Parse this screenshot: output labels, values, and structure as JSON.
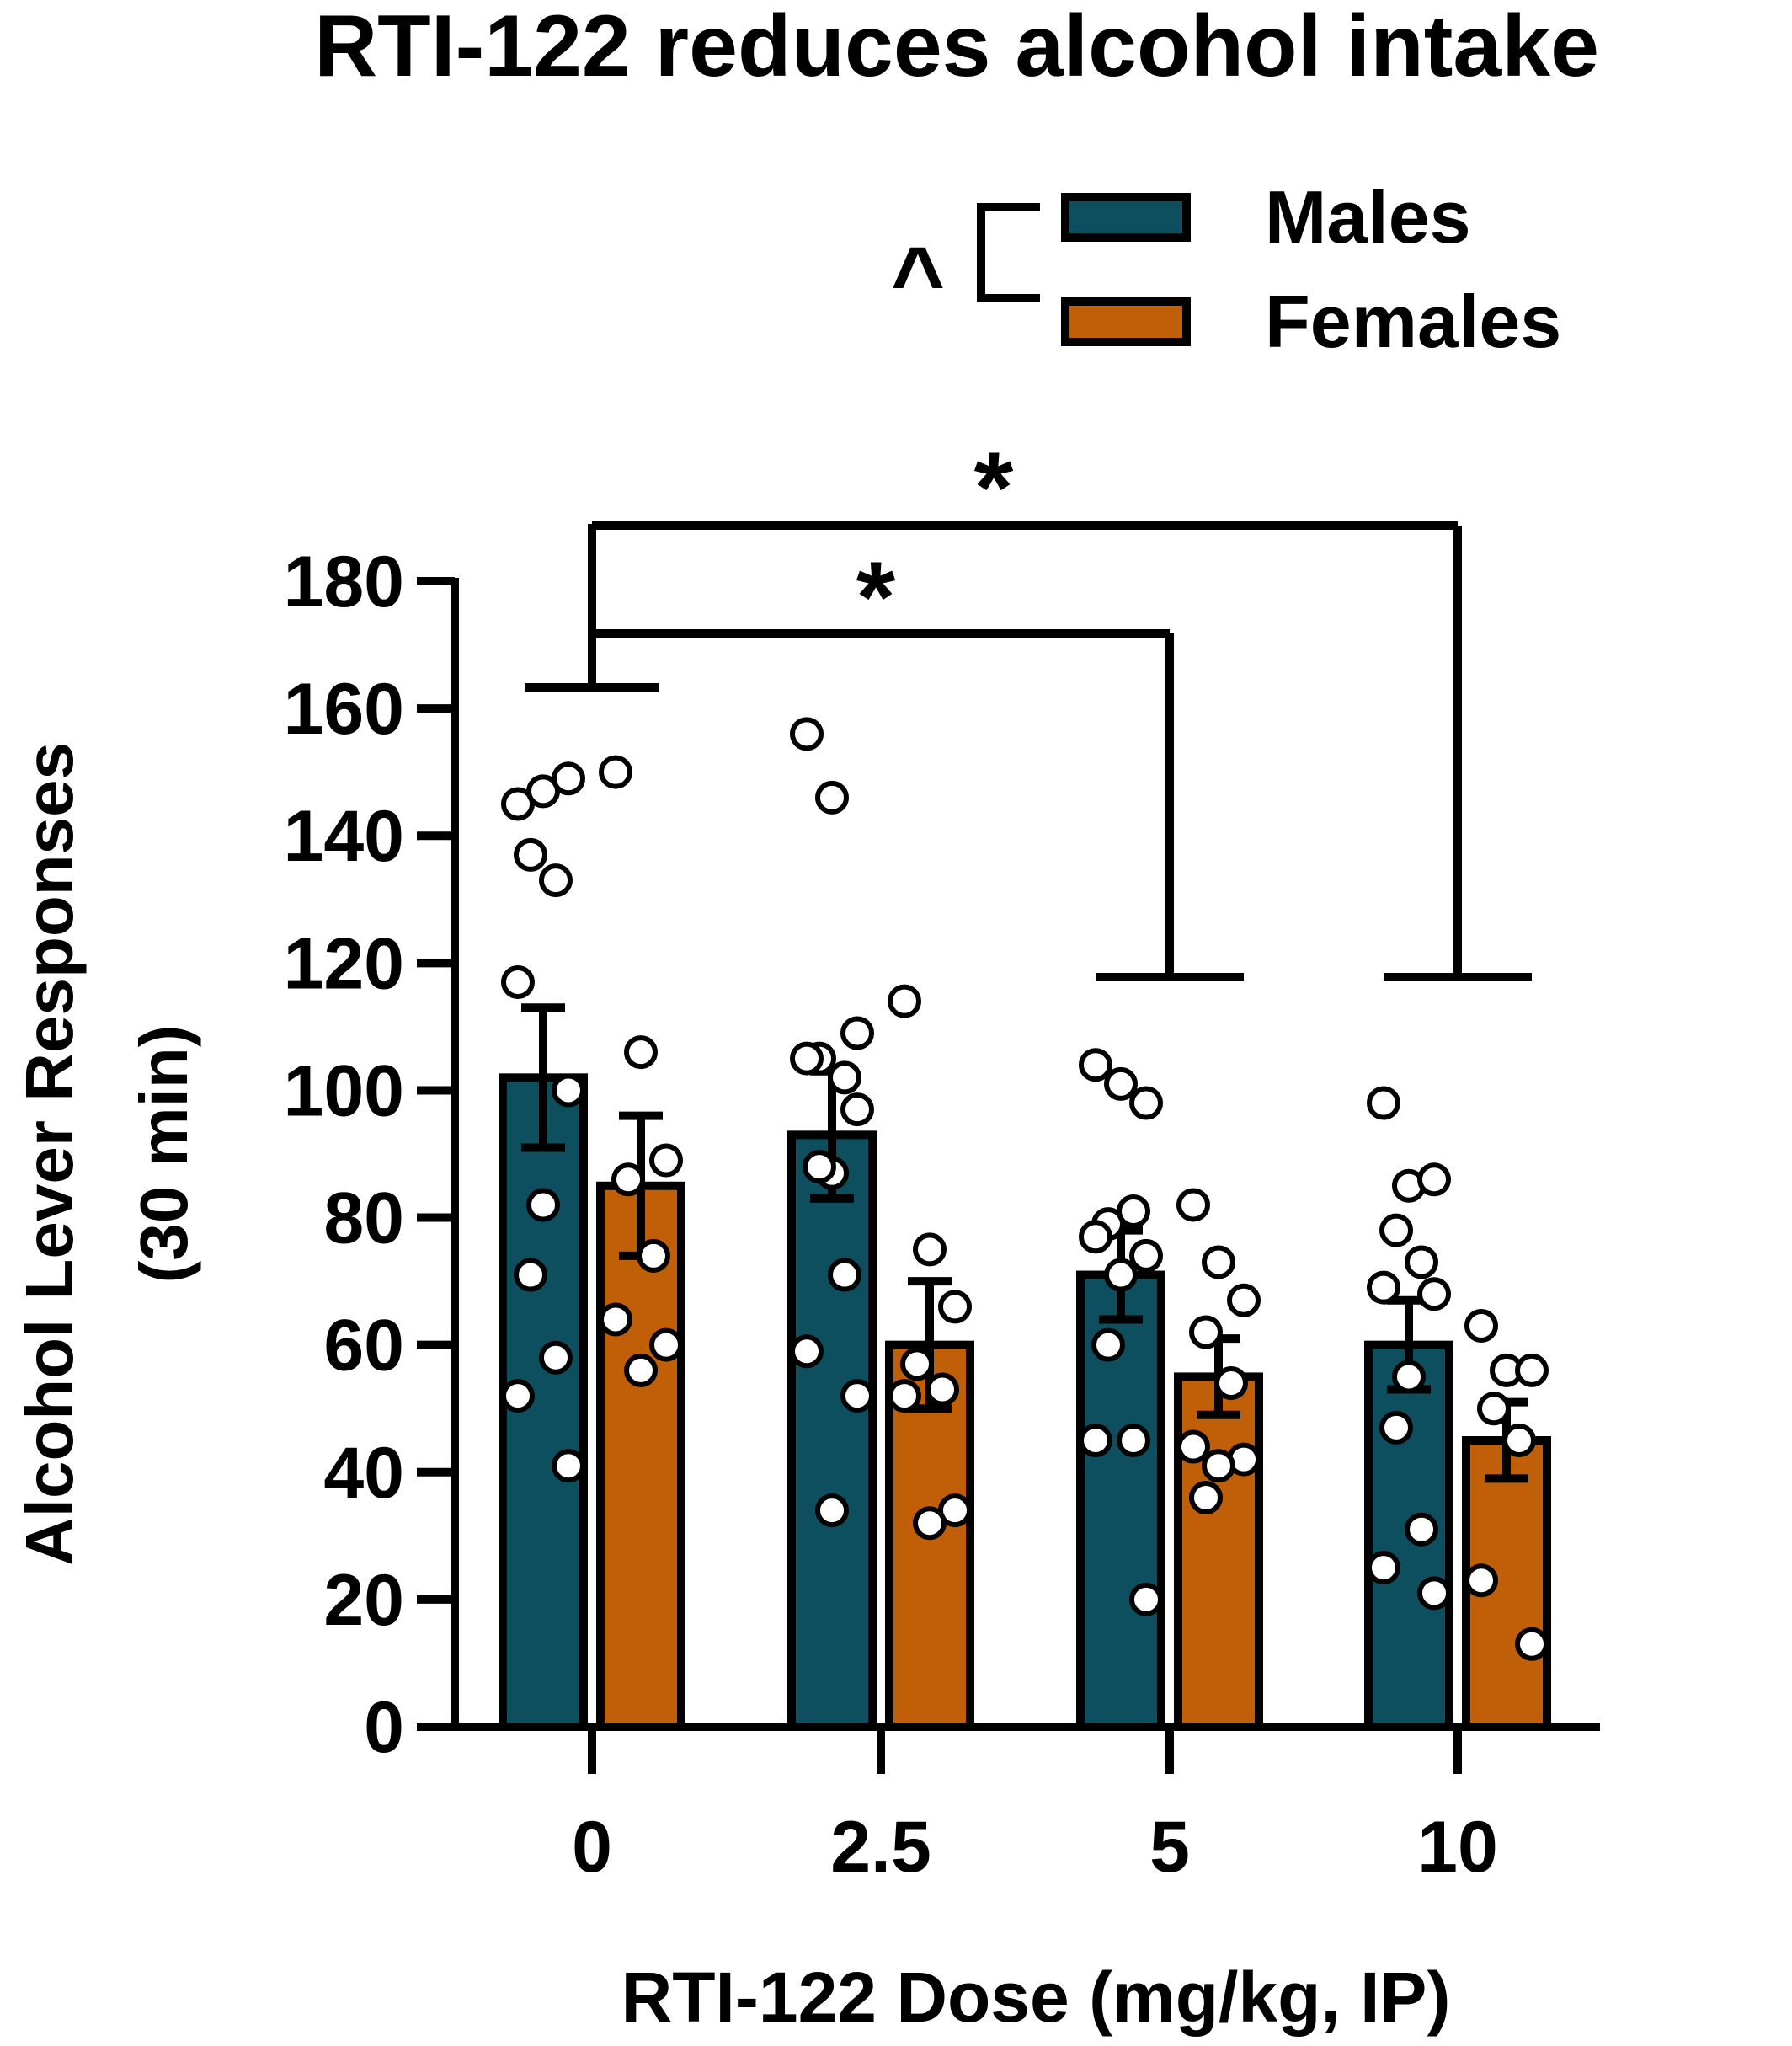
{
  "chart_data": {
    "type": "bar",
    "title": "RTI-122 reduces alcohol intake",
    "xlabel": "RTI-122 Dose (mg/kg, IP)",
    "ylabel": [
      "Alcohol Lever Responses",
      "(30 min)"
    ],
    "ylim": [
      0,
      180
    ],
    "yticks": [
      0,
      20,
      40,
      60,
      80,
      100,
      120,
      140,
      160,
      180
    ],
    "categories": [
      "0",
      "2.5",
      "5",
      "10"
    ],
    "series": [
      {
        "name": "Males",
        "color": "#0e4f5f",
        "values": [
          102,
          93,
          71,
          60
        ],
        "sem": [
          11,
          10,
          7,
          7
        ],
        "points": [
          [
            145,
            147,
            149,
            137,
            133,
            117,
            100,
            82,
            71,
            58,
            52,
            41
          ],
          [
            156,
            146,
            109,
            105,
            102,
            105,
            97,
            87,
            88,
            71,
            59,
            52,
            34
          ],
          [
            104,
            101,
            98,
            79,
            81,
            77,
            74,
            71,
            60,
            45,
            45,
            20
          ],
          [
            98,
            85,
            86,
            78,
            73,
            69,
            68,
            55,
            47,
            31,
            25,
            21
          ]
        ]
      },
      {
        "name": "Females",
        "color": "#c05f08",
        "values": [
          85,
          60,
          55,
          45
        ],
        "sem": [
          11,
          10,
          6,
          6
        ],
        "points": [
          [
            150,
            106,
            89,
            86,
            74,
            64,
            60,
            56
          ],
          [
            114,
            75,
            66,
            57,
            53,
            52,
            34,
            32
          ],
          [
            82,
            73,
            67,
            62,
            54,
            44,
            42,
            41,
            36
          ],
          [
            63,
            56,
            56,
            50,
            45,
            23,
            13
          ]
        ]
      }
    ],
    "annotations": {
      "interaction_symbol": "^",
      "comparisons": [
        {
          "from": "0",
          "to": "5",
          "label": "*"
        },
        {
          "from": "0",
          "to": "10",
          "label": "*"
        }
      ]
    }
  }
}
